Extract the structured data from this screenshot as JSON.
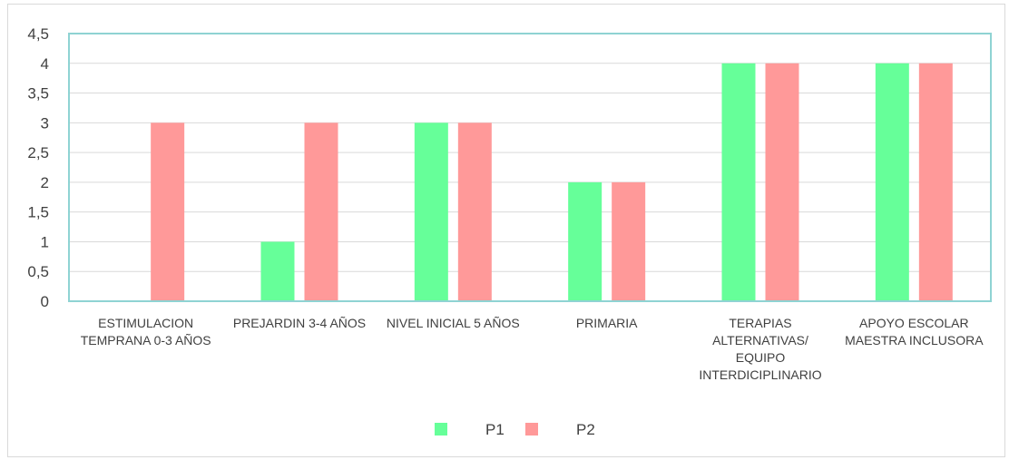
{
  "chart_data": {
    "type": "bar",
    "categories": [
      "ESTIMULACION TEMPRANA 0-3 AÑOS",
      "PREJARDIN 3-4 AÑOS",
      "NIVEL INICIAL 5 AÑOS",
      "PRIMARIA",
      "TERAPIAS ALTERNATIVAS/ EQUIPO INTERDICIPLINARIO",
      "APOYO ESCOLAR MAESTRA INCLUSORA"
    ],
    "category_lines": [
      [
        "ESTIMULACION",
        "TEMPRANA 0-3 AÑOS"
      ],
      [
        "PREJARDIN 3-4 AÑOS"
      ],
      [
        "NIVEL INICIAL 5 AÑOS"
      ],
      [
        "PRIMARIA"
      ],
      [
        "TERAPIAS",
        "ALTERNATIVAS/",
        "EQUIPO",
        "INTERDICIPLINARIO"
      ],
      [
        "APOYO ESCOLAR",
        "MAESTRA INCLUSORA"
      ]
    ],
    "series": [
      {
        "name": "P1",
        "color": "#66ff99",
        "values": [
          0,
          1,
          3,
          2,
          4,
          4
        ]
      },
      {
        "name": "P2",
        "color": "#ff9999",
        "values": [
          3,
          3,
          3,
          2,
          4,
          4
        ]
      }
    ],
    "y_ticks": [
      "0",
      "0,5",
      "1",
      "1,5",
      "2",
      "2,5",
      "3",
      "3,5",
      "4",
      "4,5"
    ],
    "ylim": [
      0,
      4.5
    ],
    "grid": true,
    "legend_position": "bottom",
    "plot_border_color": "#8fd3d3",
    "grid_color": "#d9d9d9"
  }
}
